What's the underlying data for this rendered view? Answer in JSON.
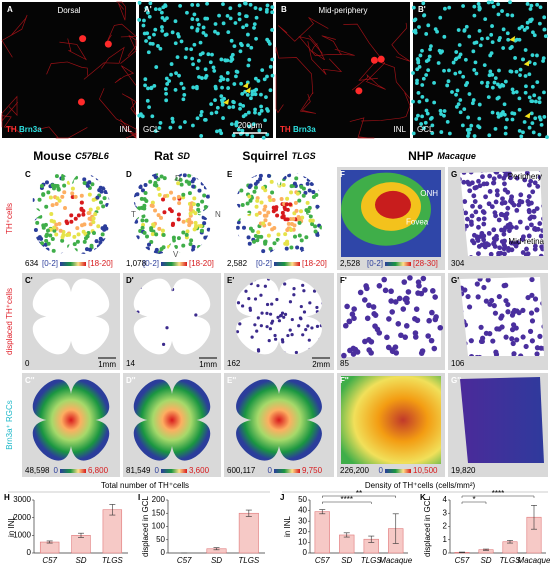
{
  "figure": {
    "top_panels": [
      {
        "letter": "A",
        "label": "Dorsal",
        "stain": [
          "TH",
          "Brn3a"
        ],
        "layer": "INL"
      },
      {
        "letter": "A'",
        "layer": "GCL",
        "scale_bar": "200μm"
      },
      {
        "letter": "B",
        "label": "Mid-periphery",
        "stain": [
          "TH",
          "Brn3a"
        ],
        "layer": "INL"
      },
      {
        "letter": "B'",
        "layer": "GCL"
      }
    ],
    "species": [
      {
        "name": "Mouse",
        "strain": "C57BL6"
      },
      {
        "name": "Rat",
        "strain": "SD"
      },
      {
        "name": "Squirrel",
        "strain": "TLGS"
      },
      {
        "name": "NHP",
        "strain": "Macaque"
      }
    ],
    "row_labels": [
      {
        "text": "TH⁺cells"
      },
      {
        "prefix": "displaced",
        "text": "TH⁺cells"
      },
      {
        "text": "Brn3a⁺ RGCs"
      }
    ],
    "orientation": [
      "D",
      "T",
      "N",
      "V"
    ],
    "f_labels": [
      "ONH",
      "Fovea"
    ],
    "g_labels": [
      "Periphery",
      "Mid-retina"
    ],
    "retina_rows": [
      [
        {
          "letter": "C",
          "count": "634",
          "scale": [
            "[0-2]",
            "[18-20]"
          ]
        },
        {
          "letter": "D",
          "count": "1,078",
          "scale": [
            "[0-2]",
            "[18-20]"
          ]
        },
        {
          "letter": "E",
          "count": "2,582",
          "scale": [
            "[0-2]",
            "[18-20]"
          ]
        },
        {
          "letter": "F",
          "count": "2,528",
          "scale": [
            "[0-2]",
            "[28-30]"
          ]
        },
        {
          "letter": "G",
          "count": "304"
        }
      ],
      [
        {
          "letter": "C'",
          "count": "0",
          "scale_bar": "1mm"
        },
        {
          "letter": "D'",
          "count": "14",
          "scale_bar": "1mm"
        },
        {
          "letter": "E'",
          "count": "162",
          "scale_bar": "2mm"
        },
        {
          "letter": "F'",
          "count": "85"
        },
        {
          "letter": "G'",
          "count": "106"
        }
      ],
      [
        {
          "letter": "C''",
          "count": "48,598",
          "scale": [
            "0",
            "6,800"
          ]
        },
        {
          "letter": "D''",
          "count": "81,549",
          "scale": [
            "0",
            "3,600"
          ]
        },
        {
          "letter": "E''",
          "count": "600,117",
          "scale": [
            "0",
            "9,750"
          ]
        },
        {
          "letter": "F''",
          "count": "226,200",
          "scale": [
            "0",
            "10,500"
          ]
        },
        {
          "letter": "G''",
          "count": "19,820"
        }
      ]
    ],
    "section_titles": [
      "Total number of TH⁺cells",
      "Density of TH⁺cells (cells/mm²)"
    ]
  },
  "chart_data": [
    {
      "type": "bar",
      "letter": "H",
      "ylabel": "in INL",
      "categories": [
        "C57",
        "SD",
        "TLGS"
      ],
      "values": [
        620,
        1000,
        2450
      ],
      "errors": [
        60,
        120,
        300
      ],
      "color": "#f6c9c6",
      "ylim": [
        0,
        3000
      ],
      "yticks": [
        0,
        1000,
        2000,
        3000
      ]
    },
    {
      "type": "bar",
      "letter": "I",
      "ylabel": "displaced in GCL",
      "categories": [
        "C57",
        "SD",
        "TLGS"
      ],
      "values": [
        0,
        16,
        150
      ],
      "errors": [
        0,
        4,
        12
      ],
      "color": "#f6c9c6",
      "ylim": [
        0,
        200
      ],
      "yticks": [
        0,
        50,
        100,
        150,
        200
      ]
    },
    {
      "type": "bar",
      "letter": "J",
      "ylabel": "in INL",
      "categories": [
        "C57",
        "SD",
        "TLGS",
        "Macaque"
      ],
      "values": [
        39,
        17,
        13,
        23
      ],
      "errors": [
        2,
        2,
        3,
        14
      ],
      "color": "#f6c9c6",
      "ylim": [
        0,
        50
      ],
      "yticks": [
        0,
        10,
        20,
        30,
        40,
        50
      ],
      "annotations": [
        "**",
        "****"
      ]
    },
    {
      "type": "bar",
      "letter": "K",
      "ylabel": "displaced in GCL",
      "categories": [
        "C57",
        "SD",
        "TLGS",
        "Macaque"
      ],
      "values": [
        0.05,
        0.25,
        0.85,
        2.7
      ],
      "errors": [
        0.02,
        0.05,
        0.1,
        0.9
      ],
      "color": "#f6c9c6",
      "ylim": [
        0,
        4
      ],
      "yticks": [
        0,
        1,
        2,
        3,
        4
      ],
      "annotations": [
        "****",
        "*"
      ]
    }
  ]
}
